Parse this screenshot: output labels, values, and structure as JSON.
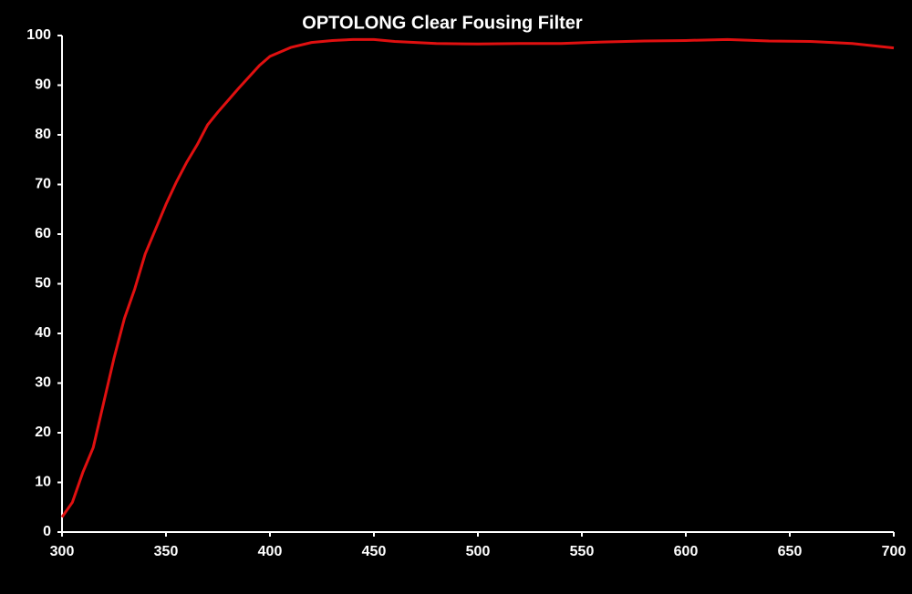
{
  "chart_data": {
    "type": "line",
    "title": "OPTOLONG Clear Fousing Filter",
    "x": [
      300,
      305,
      310,
      315,
      320,
      325,
      330,
      335,
      340,
      345,
      350,
      355,
      360,
      365,
      370,
      375,
      380,
      385,
      390,
      395,
      400,
      410,
      420,
      430,
      440,
      450,
      460,
      470,
      480,
      500,
      520,
      540,
      560,
      580,
      600,
      620,
      640,
      660,
      680,
      700
    ],
    "series": [
      {
        "color": "#e01010",
        "values": [
          3,
          6,
          12,
          17,
          26,
          35,
          43,
          49,
          56,
          61,
          66,
          70.5,
          74.5,
          78,
          82,
          84.6,
          87,
          89.4,
          91.7,
          94,
          95.8,
          97.6,
          98.6,
          99,
          99.2,
          99.2,
          98.8,
          98.6,
          98.4,
          98.3,
          98.4,
          98.4,
          98.7,
          98.9,
          99,
          99.2,
          98.9,
          98.8,
          98.4,
          97.5
        ]
      }
    ],
    "xlim": [
      300,
      700
    ],
    "xticks": [
      300,
      350,
      400,
      450,
      500,
      550,
      600,
      650,
      700
    ],
    "ylim": [
      0,
      100
    ],
    "yticks": [
      0,
      10,
      20,
      30,
      40,
      50,
      60,
      70,
      80,
      90,
      100
    ],
    "grid": false
  }
}
